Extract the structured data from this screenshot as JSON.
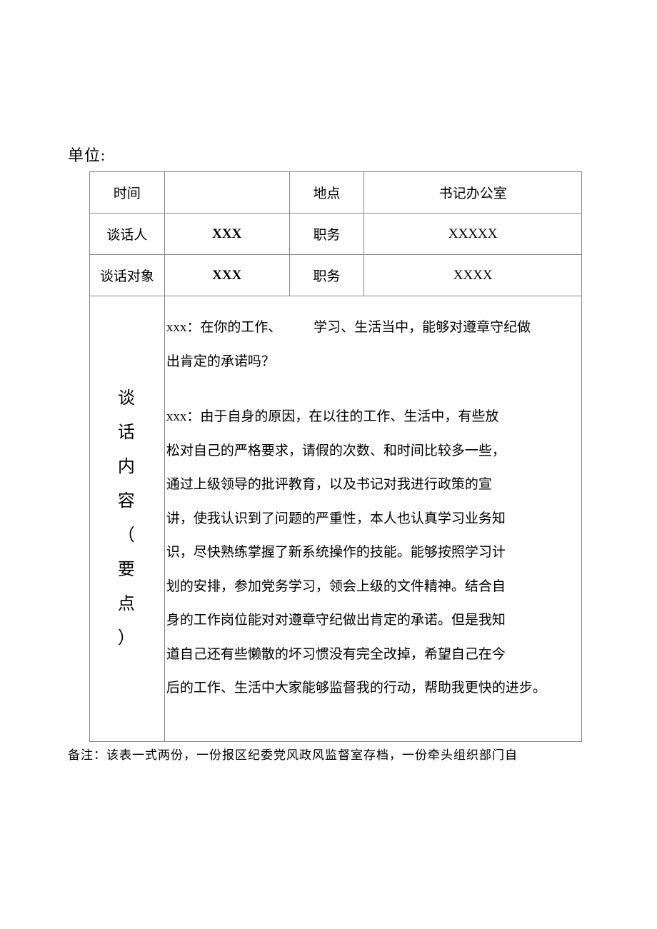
{
  "unit_label": "单位:",
  "headers": {
    "time_label": "时间",
    "time_value": "",
    "place_label": "地点",
    "place_value": "书记办公室",
    "speaker_label": "谈话人",
    "speaker_value": "XXX",
    "speaker_role_label": "职务",
    "speaker_role_value": "XXXXX",
    "subject_label": "谈话对象",
    "subject_value": "XXX",
    "subject_role_label": "职务",
    "subject_role_value": "XXXX"
  },
  "content_label_chars": [
    "谈",
    "话",
    "内",
    "容",
    "（",
    "要",
    "点",
    "）"
  ],
  "content": {
    "q_part1": "xxx：在你的工作、",
    "q_part2": "学习、生活当中，能够对遵章守纪做",
    "q_line2": "出肯定的承诺吗？",
    "a_lines": [
      "xxx：由于自身的原因，在以往的工作、生活中，有些放",
      "松对自己的严格要求，请假的次数、和时间比较多一些，",
      "通过上级领导的批评教育，以及书记对我进行政策的宣",
      "讲，使我认识到了问题的严重性，本人也认真学习业务知",
      "识，尽快熟练掌握了新系统操作的技能。能够按照学习计",
      "划的安排，参加党务学习，领会上级的文件精神。结合自",
      "身的工作岗位能对对遵章守纪做出肯定的承诺。但是我知",
      "道自己还有些懒散的坏习惯没有完全改掉，希望自己在今",
      "后的工作、生活中大家能够监督我的行动，帮助我更快的进步。"
    ]
  },
  "footnote": "备注：该表一式两份，一份报区纪委党风政风监督室存档，一份牵头组织部门自"
}
